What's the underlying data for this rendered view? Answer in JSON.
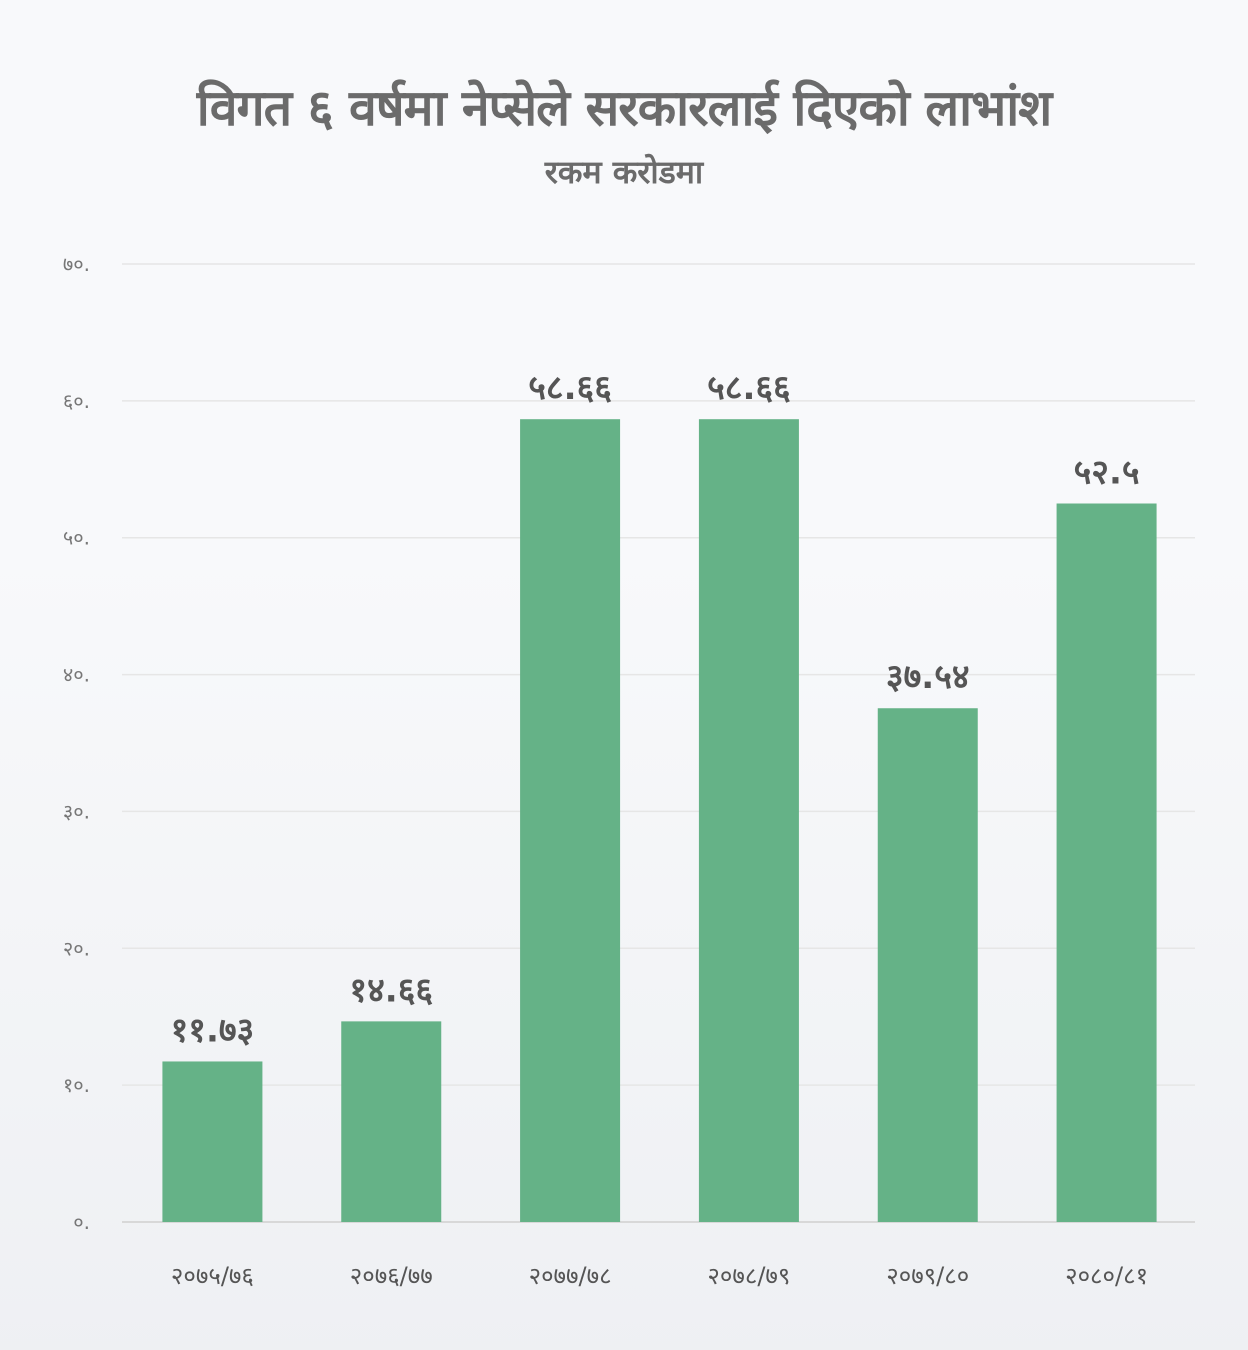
{
  "chart_data": {
    "type": "bar",
    "title": "विगत ६ वर्षमा नेप्सेले सरकारलाई दिएको लाभांश",
    "subtitle": "रकम करोडमा",
    "xlabel": "",
    "ylabel": "",
    "ylim": [
      0,
      70
    ],
    "grid": true,
    "yticks": [
      0,
      10,
      20,
      30,
      40,
      50,
      60,
      70
    ],
    "ytick_labels": [
      "०.",
      "१०.",
      "२०.",
      "३०.",
      "४०.",
      "५०.",
      "६०.",
      "७०."
    ],
    "categories": [
      "२०७५/७६",
      "२०७६/७७",
      "२०७७/७८",
      "२०७८/७९",
      "२०७९/८०",
      "२०८०/८१"
    ],
    "values": [
      11.73,
      14.66,
      58.66,
      58.66,
      37.54,
      52.5
    ],
    "value_labels": [
      "११.७३",
      "१४.६६",
      "५८.६६",
      "५८.६६",
      "३७.५४",
      "५२.५"
    ],
    "bar_color": "#65b287"
  }
}
